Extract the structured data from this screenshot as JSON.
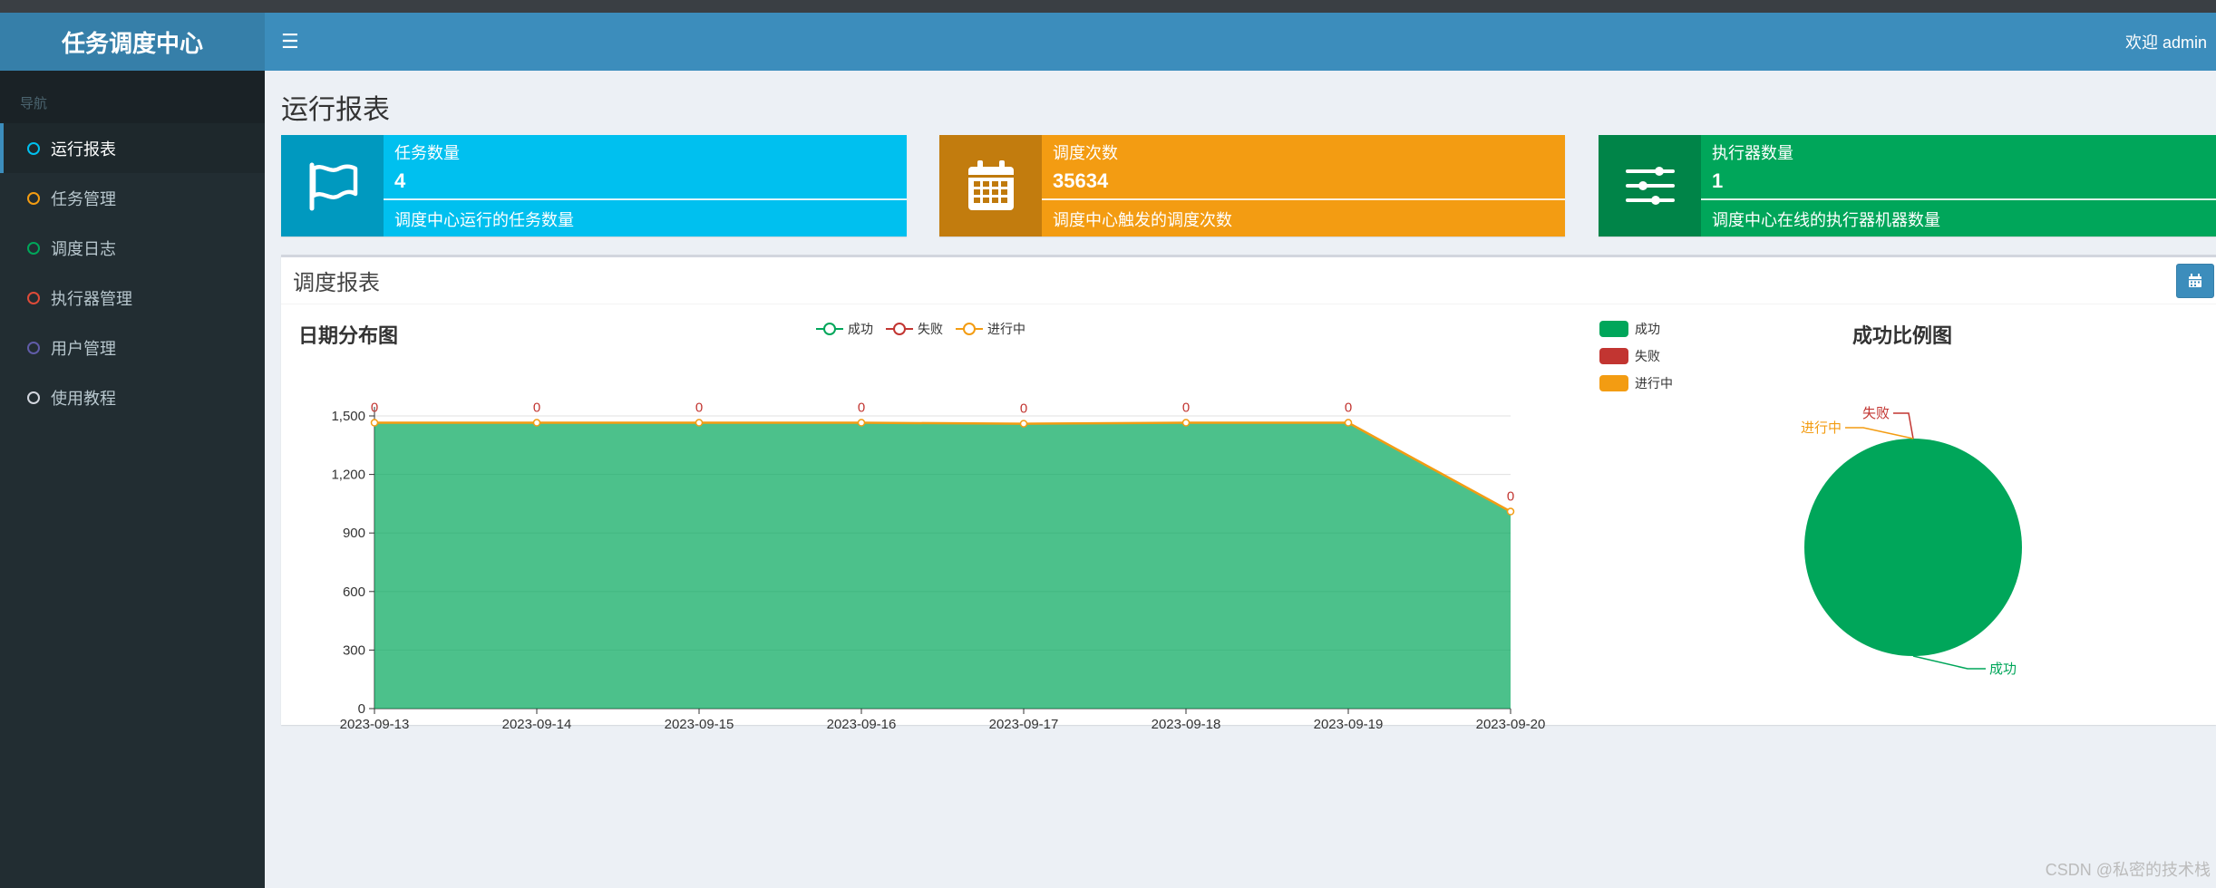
{
  "app": {
    "title": "任务调度中心",
    "welcome": "欢迎 admin"
  },
  "sidebar": {
    "header": "导航",
    "items": [
      {
        "label": "运行报表",
        "color": "#00c0ef",
        "active": true
      },
      {
        "label": "任务管理",
        "color": "#f39c12"
      },
      {
        "label": "调度日志",
        "color": "#00a65a"
      },
      {
        "label": "执行器管理",
        "color": "#dd4b39"
      },
      {
        "label": "用户管理",
        "color": "#605ca8"
      },
      {
        "label": "使用教程",
        "color": "#d2d6de"
      }
    ]
  },
  "page": {
    "title": "运行报表"
  },
  "info_boxes": [
    {
      "label": "任务数量",
      "number": "4",
      "desc": "调度中心运行的任务数量",
      "color": "#00c0ef",
      "icon": "flag-icon"
    },
    {
      "label": "调度次数",
      "number": "35634",
      "desc": "调度中心触发的调度次数",
      "color": "#f39c12",
      "icon": "calendar-icon"
    },
    {
      "label": "执行器数量",
      "number": "1",
      "desc": "调度中心在线的执行器机器数量",
      "color": "#00a65a",
      "icon": "sliders-icon"
    }
  ],
  "report": {
    "title": "调度报表",
    "line_chart_title": "日期分布图",
    "pie_chart_title": "成功比例图"
  },
  "chart_data": [
    {
      "type": "area",
      "title": "日期分布图",
      "x": [
        "2023-09-13",
        "2023-09-14",
        "2023-09-15",
        "2023-09-16",
        "2023-09-17",
        "2023-09-18",
        "2023-09-19",
        "2023-09-20"
      ],
      "series": [
        {
          "name": "成功",
          "color": "#00a65a",
          "values": [
            1465,
            1465,
            1465,
            1465,
            1460,
            1465,
            1465,
            1010
          ]
        },
        {
          "name": "失败",
          "color": "#c23531",
          "values": [
            0,
            0,
            0,
            0,
            0,
            0,
            0,
            0
          ],
          "labels": [
            "0",
            "0",
            "0",
            "0",
            "0",
            "0",
            "0",
            "0"
          ]
        },
        {
          "name": "进行中",
          "color": "#f39c12",
          "values": [
            0,
            0,
            0,
            0,
            0,
            0,
            0,
            0
          ]
        }
      ],
      "yticks": [
        "0",
        "300",
        "600",
        "900",
        "1,200",
        "1,500"
      ],
      "ylim": [
        0,
        1500
      ],
      "legend": "top-center",
      "grid": true
    },
    {
      "type": "pie",
      "title": "成功比例图",
      "slices": [
        {
          "name": "成功",
          "value": 35634,
          "color": "#00a65a"
        },
        {
          "name": "失败",
          "value": 0,
          "color": "#c23531"
        },
        {
          "name": "进行中",
          "value": 0,
          "color": "#f39c12"
        }
      ],
      "legend": "top-left"
    }
  ],
  "watermark": "CSDN @私密的技术栈"
}
